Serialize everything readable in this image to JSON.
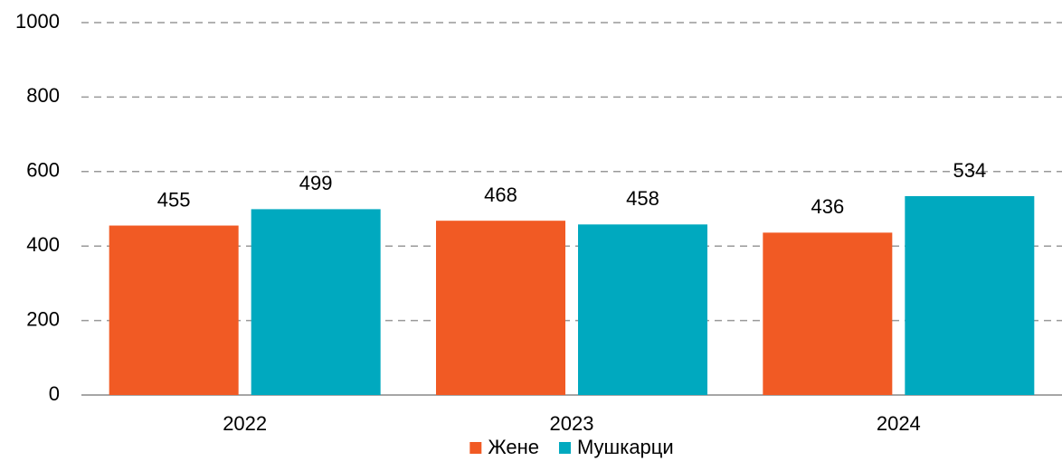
{
  "chart_data": {
    "type": "bar",
    "categories": [
      "2022",
      "2023",
      "2024"
    ],
    "series": [
      {
        "name": "Жене",
        "color": "#f15a24",
        "values": [
          455,
          468,
          436
        ]
      },
      {
        "name": "Мушкарци",
        "color": "#00a9bf",
        "values": [
          499,
          458,
          534
        ]
      }
    ],
    "ylim": [
      0,
      1000
    ],
    "yticks": [
      0,
      200,
      400,
      600,
      800,
      1000
    ],
    "grid": true,
    "legend": "bottom"
  }
}
